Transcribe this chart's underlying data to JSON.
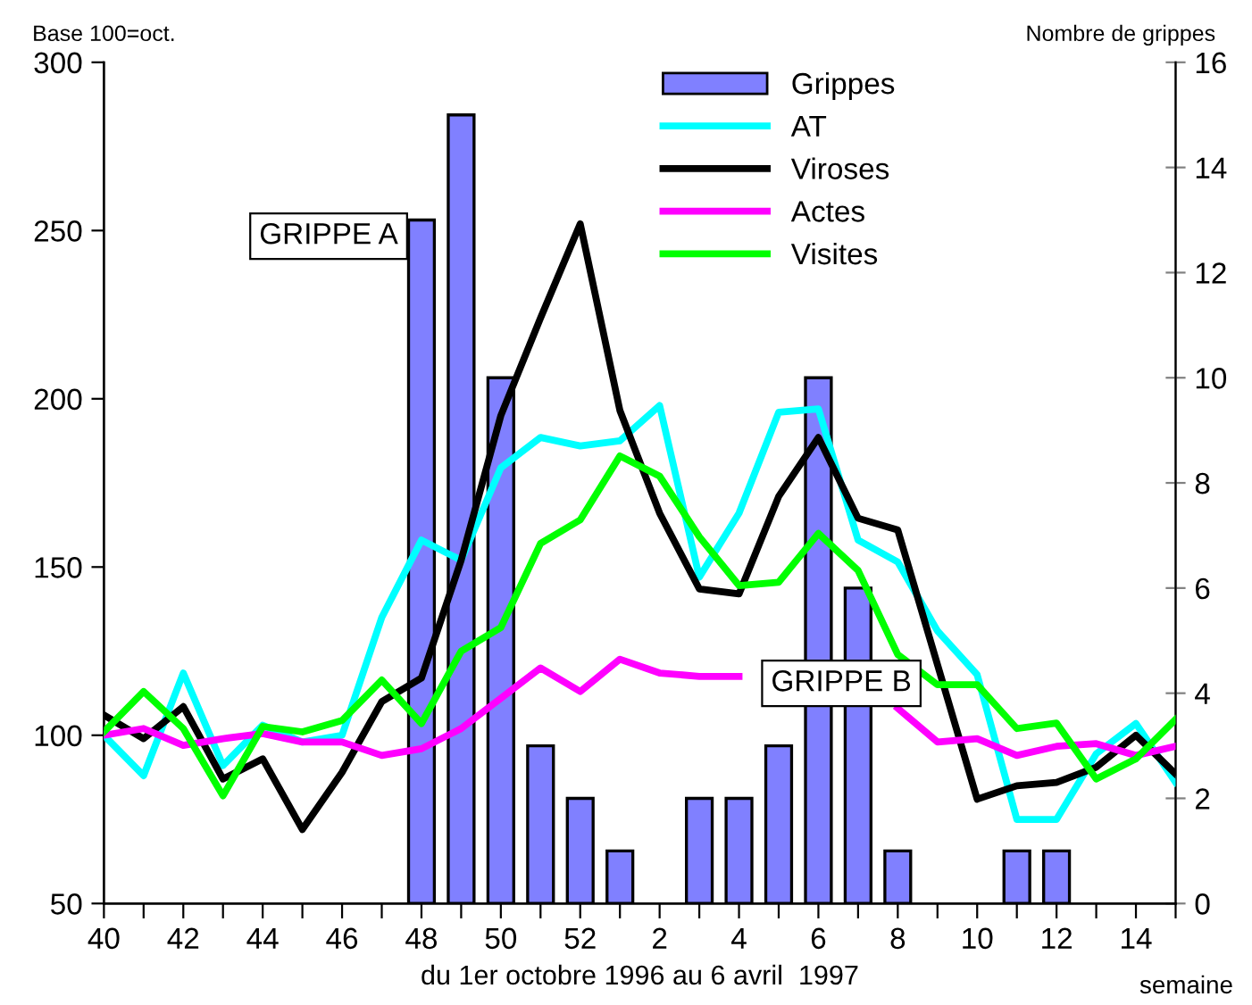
{
  "chart_data": {
    "type": "line",
    "ylabel": "Base 100=oct.",
    "y2label": "Nombre de grippes",
    "xlabel": "du 1er octobre 1996 au 6 avril  1997",
    "categories": [
      "40",
      null,
      "42",
      null,
      "44",
      null,
      "46",
      null,
      "48",
      null,
      "50",
      null,
      "52",
      null,
      "2",
      null,
      "4",
      null,
      "6",
      null,
      "8",
      null,
      "10",
      null,
      "12",
      null,
      "14",
      null
    ],
    "series": [
      {
        "name": "Grippes",
        "type": "bar",
        "axis": "y2",
        "color": "#8080ff",
        "values": [
          null,
          null,
          null,
          null,
          null,
          null,
          null,
          null,
          13,
          15,
          10,
          3,
          2,
          1,
          null,
          2,
          2,
          3,
          10,
          6,
          1,
          null,
          null,
          1,
          1,
          null,
          null,
          null
        ]
      },
      {
        "name": "AT",
        "color": "#00ffff",
        "values": [
          100,
          88,
          118.5,
          91,
          103,
          98,
          100,
          135,
          158,
          152,
          179.5,
          188.5,
          186,
          187.5,
          198,
          147,
          166,
          196,
          197,
          158,
          151.5,
          131,
          118,
          75,
          75,
          94.5,
          103.5,
          86
        ]
      },
      {
        "name": "Viroses",
        "color": "#000000",
        "values": [
          106,
          99,
          108.5,
          87,
          93,
          72,
          89,
          110,
          117,
          152,
          195,
          224,
          252,
          196.5,
          166,
          143.5,
          142,
          171,
          188.5,
          164.5,
          161,
          121,
          81,
          85,
          86,
          90.5,
          100,
          88.5
        ]
      },
      {
        "name": "Actes",
        "color": "#ff00ff",
        "values": [
          100,
          102,
          97,
          99,
          100.5,
          98,
          98,
          94,
          96,
          102,
          111,
          120,
          113,
          122.6,
          118.5,
          117.5,
          117.5,
          null,
          null,
          null,
          108,
          98,
          99,
          94,
          96.7,
          97.5,
          94,
          96.7
        ]
      },
      {
        "name": "Visites",
        "color": "#00ff00",
        "values": [
          101,
          113,
          102,
          82,
          102.6,
          101,
          104.4,
          116.4,
          103.5,
          125,
          132,
          157,
          164,
          183,
          177,
          159,
          144.5,
          145.5,
          160,
          149,
          124,
          115,
          115,
          102,
          103.6,
          87,
          93,
          104.7
        ]
      }
    ],
    "ylim": [
      50,
      300
    ],
    "yticks": [
      50,
      100,
      150,
      200,
      250,
      300
    ],
    "y2lim": [
      0,
      16
    ],
    "y2ticks": [
      0,
      2,
      4,
      6,
      8,
      10,
      12,
      14,
      16
    ],
    "annotations": [
      "GRIPPE A",
      "GRIPPE B",
      "semaine"
    ],
    "legend": "top",
    "grid": false,
    "marker": "none",
    "line_style": "solid"
  }
}
